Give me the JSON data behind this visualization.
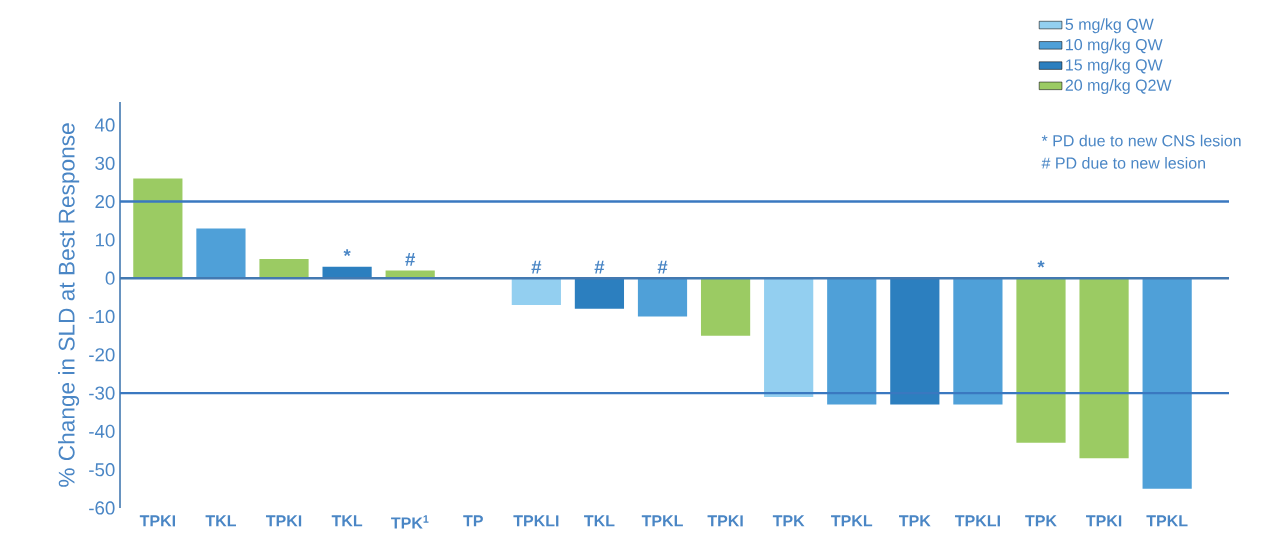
{
  "chart_data": {
    "type": "bar",
    "ylabel": "% Change in SLD at Best Response",
    "categories": [
      "TPKI",
      "TKL",
      "TPKI",
      "TKL",
      "TPK$^{1}$",
      "TP",
      "TPKLI",
      "TKL",
      "TPKL",
      "TPKI",
      "TPK",
      "TPKL",
      "TPK",
      "TPKLI",
      "TPK",
      "TPKI",
      "TPKL"
    ],
    "series": [
      {
        "name": "5 mg/kg QW",
        "color": "#93cff0",
        "values": [
          null,
          null,
          null,
          null,
          null,
          null,
          -7,
          null,
          null,
          null,
          -31,
          null,
          null,
          null,
          null,
          null,
          null
        ],
        "value_labels": [
          null,
          null,
          null,
          null,
          null,
          null,
          "#",
          null,
          null,
          null,
          null,
          null,
          null,
          null,
          null,
          null,
          null
        ]
      },
      {
        "name": "10 mg/kg QW",
        "color": "#4fa0d8",
        "values": [
          null,
          13,
          null,
          null,
          null,
          null,
          null,
          null,
          -10,
          null,
          null,
          -33,
          null,
          -33,
          null,
          null,
          -55
        ],
        "value_labels": [
          null,
          null,
          null,
          null,
          null,
          null,
          null,
          null,
          "#",
          null,
          null,
          null,
          null,
          null,
          null,
          null,
          null
        ]
      },
      {
        "name": "15 mg/kg QW",
        "color": "#2c7fbf",
        "values": [
          null,
          null,
          null,
          3,
          null,
          null,
          null,
          -8,
          null,
          null,
          null,
          null,
          -33,
          null,
          null,
          null,
          null
        ],
        "value_labels": [
          null,
          null,
          null,
          "*",
          null,
          null,
          null,
          "#",
          null,
          null,
          null,
          null,
          null,
          null,
          null,
          null,
          null
        ]
      },
      {
        "name": "20 mg/kg Q2W",
        "color": "#9bcb63",
        "values": [
          26,
          null,
          5,
          null,
          2,
          null,
          null,
          null,
          null,
          -15,
          null,
          null,
          null,
          null,
          -43,
          -47,
          null
        ],
        "value_labels": [
          null,
          null,
          null,
          null,
          "#",
          null,
          null,
          null,
          null,
          null,
          null,
          null,
          null,
          null,
          "*",
          null,
          null
        ]
      }
    ],
    "ylim": [
      -60,
      46
    ],
    "yticks": [
      -60,
      -50,
      -40,
      -30,
      -20,
      -10,
      0,
      10,
      20,
      30,
      40
    ],
    "ref_lines": [
      {
        "axis": "y",
        "value": 0,
        "color": "#4379b1"
      },
      {
        "axis": "y",
        "value": 20,
        "color": "#3a78c0"
      },
      {
        "axis": "y",
        "value": -30,
        "color": "#3a78c0"
      }
    ],
    "legend": "top right",
    "annotations": [
      "* PD due to new CNS lesion",
      "# PD due to new lesion"
    ]
  }
}
